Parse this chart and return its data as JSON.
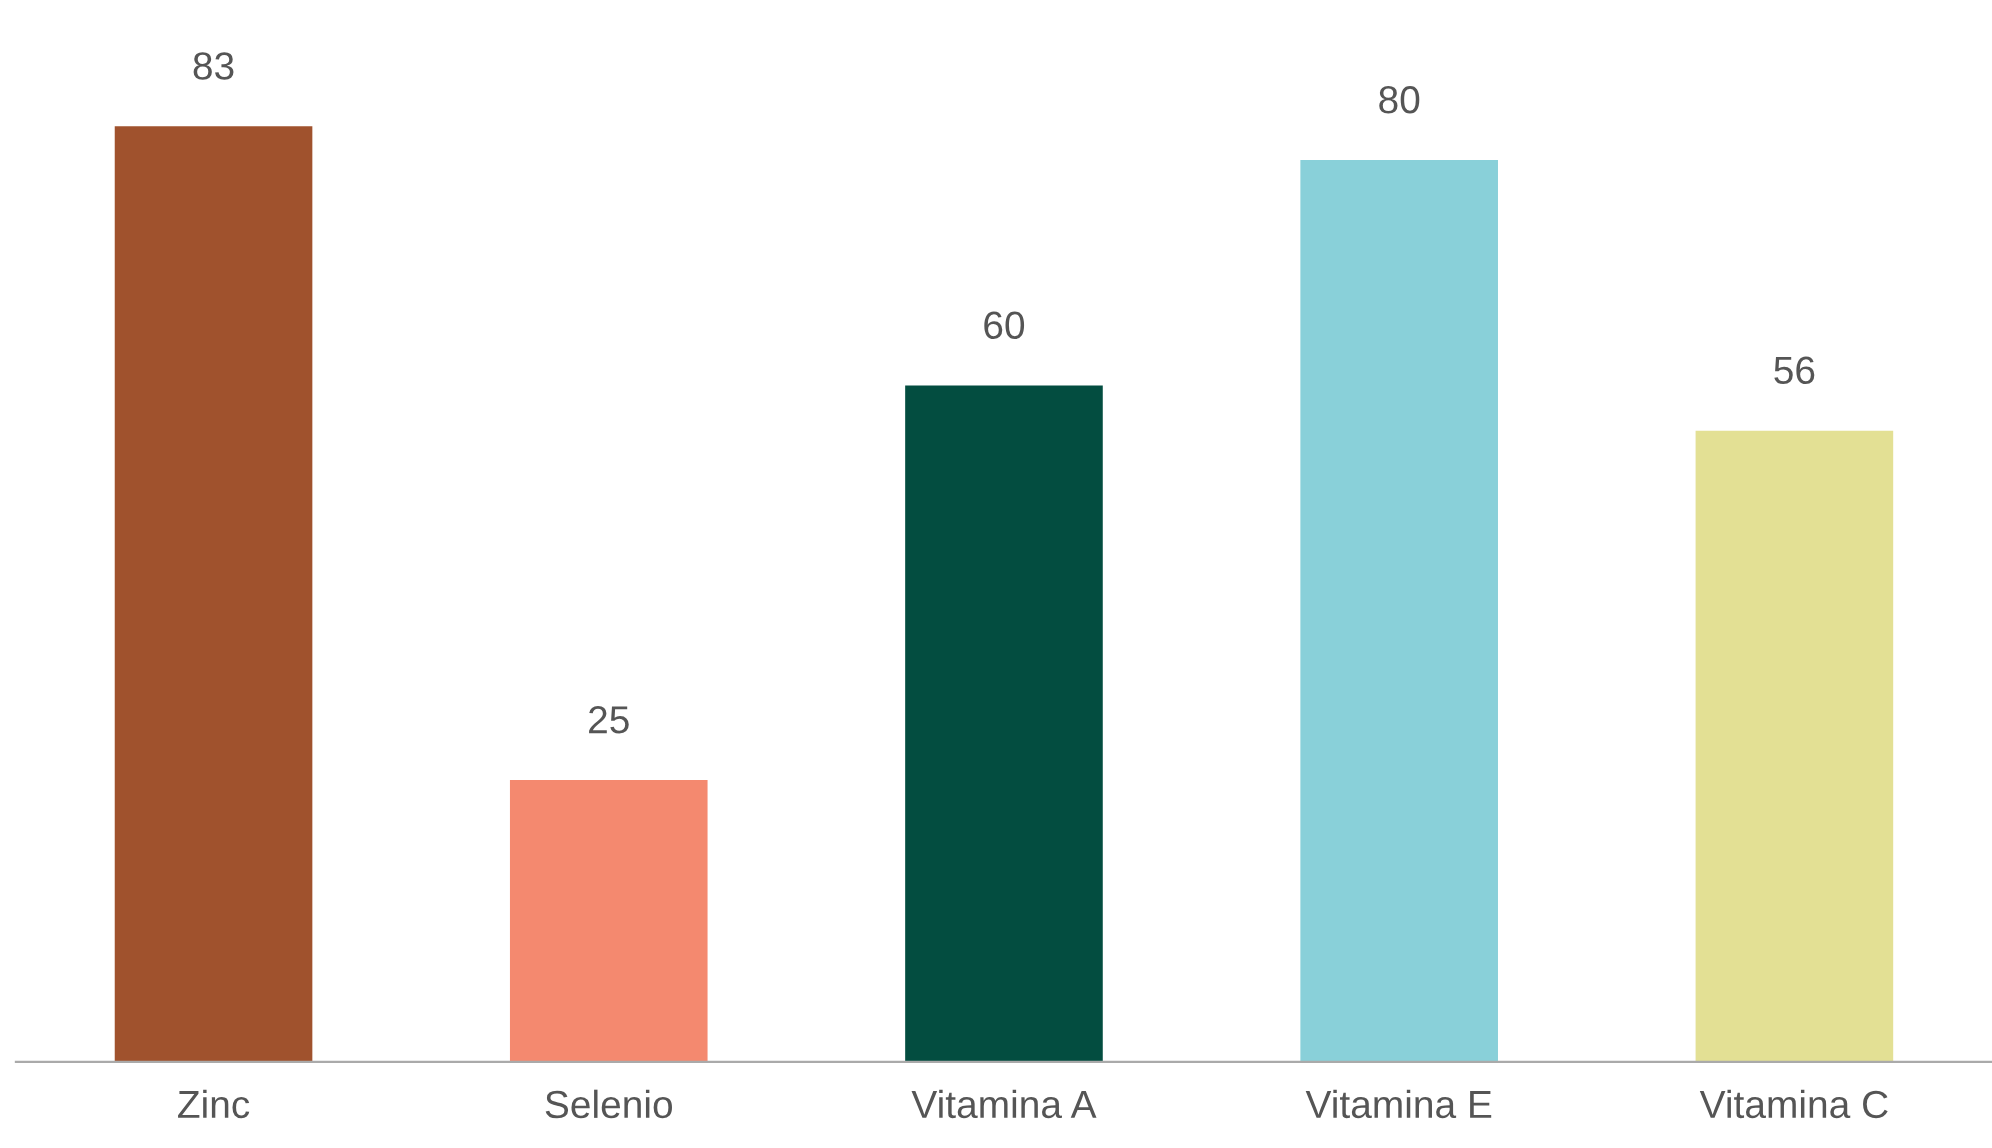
{
  "chart_data": {
    "type": "bar",
    "categories": [
      "Zinc",
      "Selenio",
      "Vitamina A",
      "Vitamina E",
      "Vitamina C"
    ],
    "values": [
      83,
      25,
      60,
      80,
      56
    ],
    "colors": [
      "#a0522d",
      "#f4896f",
      "#034d40",
      "#89d0d9",
      "#e3e094"
    ],
    "data_labels": true,
    "grid": false,
    "legend": false,
    "tick_labels": "x"
  }
}
